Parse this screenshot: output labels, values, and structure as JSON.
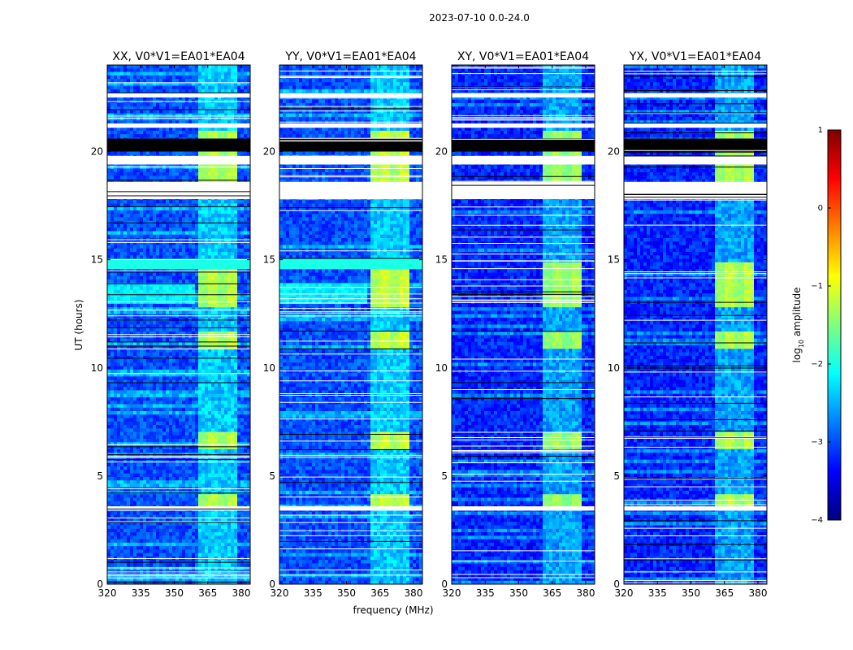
{
  "figure": {
    "suptitle": "2023-07-10 0.0-24.0"
  },
  "colorbar": {
    "label_prefix": "log",
    "label_sub": "10",
    "label_suffix": " amplitude",
    "range": [
      -4,
      1
    ],
    "ticks": [
      "1",
      "0",
      "−1",
      "−2",
      "−3",
      "−4"
    ],
    "tick_values": [
      1,
      0,
      -1,
      -2,
      -3,
      -4
    ],
    "colors": [
      "#00007f",
      "#0000ff",
      "#007fff",
      "#00ffff",
      "#7fff7f",
      "#ffff00",
      "#ff7f00",
      "#ff0000",
      "#7f0000"
    ]
  },
  "chart_data": {
    "type": "heatmap",
    "xlabel": "frequency (MHz)",
    "ylabel": "UT (hours)",
    "xlim": [
      320,
      384
    ],
    "ylim": [
      0,
      24
    ],
    "xticks": [
      320,
      335,
      350,
      365,
      380
    ],
    "xtick_labels": [
      "320",
      "335",
      "350",
      "365",
      "380"
    ],
    "yticks": [
      0,
      5,
      10,
      15,
      20
    ],
    "ytick_labels": [
      "0",
      "5",
      "10",
      "15",
      "20"
    ],
    "bright_band_mhz": [
      360.5,
      378.5
    ],
    "panels": [
      {
        "title": "XX, V0*V1=EA01*EA04",
        "baseline_log10": -3.0,
        "rfi_log10": -1.4
      },
      {
        "title": "YY, V0*V1=EA01*EA04",
        "baseline_log10": -3.0,
        "rfi_log10": -1.3
      },
      {
        "title": "XY, V0*V1=EA01*EA04",
        "baseline_log10": -3.2,
        "rfi_log10": -1.5
      },
      {
        "title": "YX, V0*V1=EA01*EA04",
        "baseline_log10": -3.2,
        "rfi_log10": -1.4
      }
    ],
    "flagged_ut_ranges": [
      [
        3.4,
        3.6
      ],
      [
        17.8,
        18.6
      ],
      [
        19.4,
        19.8
      ],
      [
        21.1,
        21.3
      ],
      [
        22.5,
        22.7
      ]
    ],
    "empty_ut_ranges": [
      [
        20.0,
        20.6
      ]
    ]
  }
}
